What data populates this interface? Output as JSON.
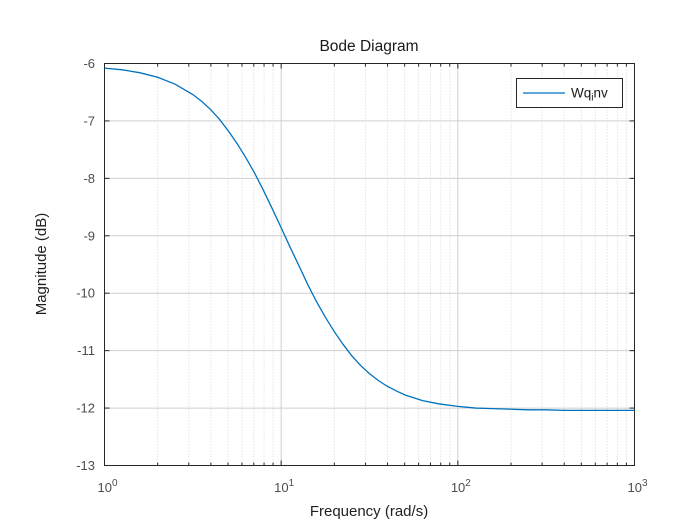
{
  "window": {
    "background": "#ffffff"
  },
  "colors": {
    "line": "#0072BD",
    "axis_box": "#262626",
    "major_grid": "#cfcfcf",
    "minor_grid": "#d6d6d6",
    "tick_label": "#4d4d4d",
    "label_text": "#1f1f1f",
    "legend_border": "#262626",
    "legend_background": "#ffffff"
  },
  "chart_data": {
    "type": "line",
    "title": "Bode Diagram",
    "xlabel": "Frequency  (rad/s)",
    "ylabel": "Magnitude (dB)",
    "xscale": "log",
    "xlim": [
      1,
      1000
    ],
    "ylim": [
      -13,
      -6
    ],
    "grid": true,
    "minor_grid": true,
    "yticks": [
      {
        "value": -6,
        "label": "-6"
      },
      {
        "value": -7,
        "label": "-7"
      },
      {
        "value": -8,
        "label": "-8"
      },
      {
        "value": -9,
        "label": "-9"
      },
      {
        "value": -10,
        "label": "-10"
      },
      {
        "value": -11,
        "label": "-11"
      },
      {
        "value": -12,
        "label": "-12"
      },
      {
        "value": -13,
        "label": "-13"
      }
    ],
    "xticks": [
      {
        "value": 1,
        "base": "10",
        "exp": "0"
      },
      {
        "value": 10,
        "base": "10",
        "exp": "1"
      },
      {
        "value": 100,
        "base": "10",
        "exp": "2"
      },
      {
        "value": 1000,
        "base": "10",
        "exp": "3"
      }
    ],
    "legend": {
      "position": "northeast",
      "entries": [
        {
          "label_pre": "Wq",
          "label_sub": "i",
          "label_post": "nv",
          "color": "#0072BD"
        }
      ]
    },
    "series": [
      {
        "name": "Wq_inv",
        "color": "#0072BD",
        "points": [
          [
            1.0,
            -6.08
          ],
          [
            1.26,
            -6.11
          ],
          [
            1.58,
            -6.16
          ],
          [
            2.0,
            -6.24
          ],
          [
            2.51,
            -6.36
          ],
          [
            3.16,
            -6.54
          ],
          [
            3.55,
            -6.66
          ],
          [
            3.98,
            -6.8
          ],
          [
            4.47,
            -6.97
          ],
          [
            5.01,
            -7.17
          ],
          [
            5.62,
            -7.39
          ],
          [
            6.31,
            -7.64
          ],
          [
            7.08,
            -7.91
          ],
          [
            7.94,
            -8.21
          ],
          [
            8.91,
            -8.53
          ],
          [
            10.0,
            -8.86
          ],
          [
            11.2,
            -9.19
          ],
          [
            12.6,
            -9.52
          ],
          [
            14.1,
            -9.84
          ],
          [
            15.8,
            -10.14
          ],
          [
            17.8,
            -10.42
          ],
          [
            20.0,
            -10.67
          ],
          [
            22.4,
            -10.89
          ],
          [
            25.1,
            -11.09
          ],
          [
            28.2,
            -11.26
          ],
          [
            31.6,
            -11.4
          ],
          [
            35.5,
            -11.52
          ],
          [
            39.8,
            -11.62
          ],
          [
            44.7,
            -11.7
          ],
          [
            50.1,
            -11.77
          ],
          [
            56.2,
            -11.82
          ],
          [
            63.1,
            -11.87
          ],
          [
            79.4,
            -11.93
          ],
          [
            100,
            -11.97
          ],
          [
            126,
            -12.0
          ],
          [
            158,
            -12.01
          ],
          [
            200,
            -12.02
          ],
          [
            251,
            -12.03
          ],
          [
            316,
            -12.03
          ],
          [
            398,
            -12.04
          ],
          [
            501,
            -12.04
          ],
          [
            631,
            -12.04
          ],
          [
            794,
            -12.04
          ],
          [
            1000,
            -12.04
          ]
        ]
      }
    ]
  }
}
